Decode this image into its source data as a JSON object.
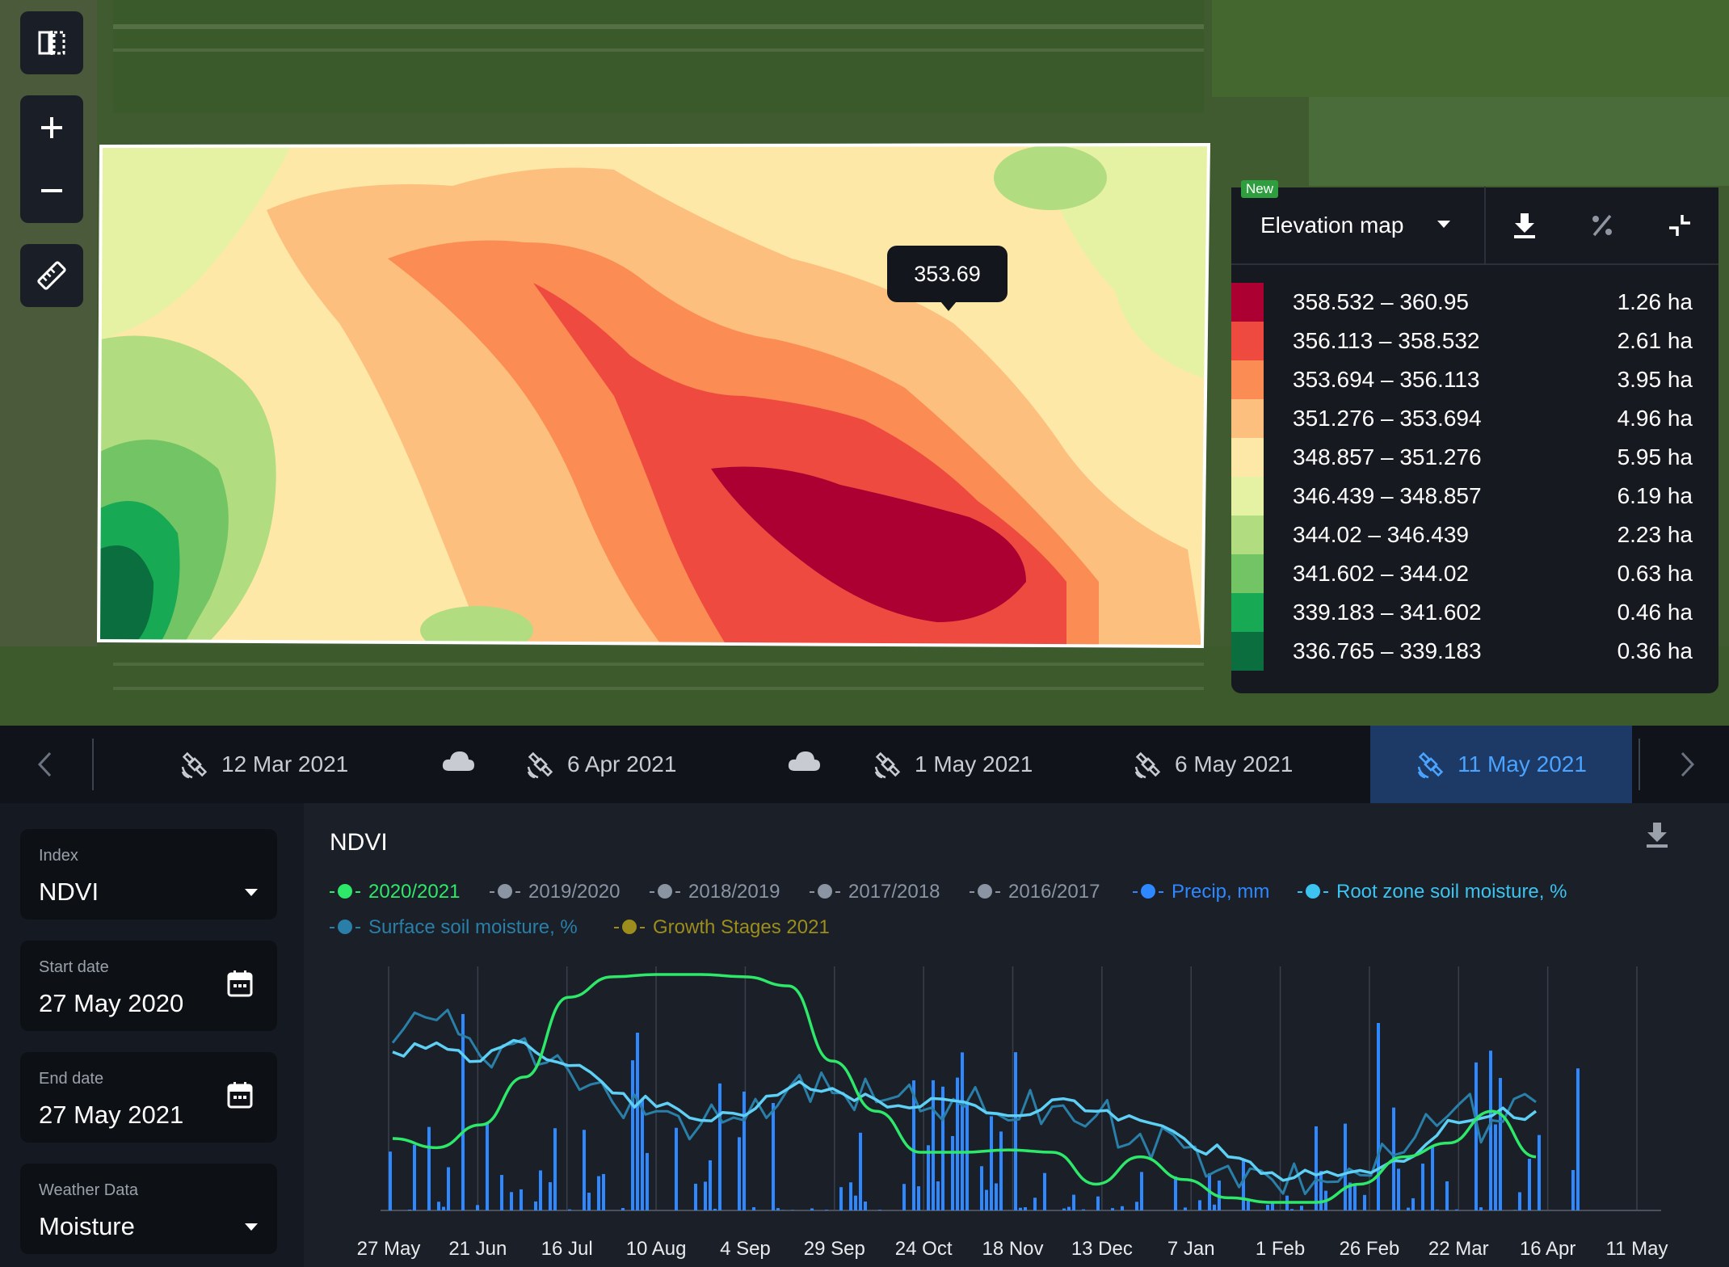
{
  "map": {
    "tooltip_value": "353.69",
    "tools": [
      "split-view",
      "zoom-in",
      "zoom-out",
      "ruler"
    ]
  },
  "legend": {
    "badge": "New",
    "map_type": "Elevation map",
    "colors": [
      "#ac0033",
      "#ee4a3f",
      "#fb8c53",
      "#fdbf7e",
      "#fee8a8",
      "#e5f2a4",
      "#b1dc80",
      "#73c464",
      "#18a955",
      "#0a6e3e"
    ],
    "rows": [
      {
        "range": "358.532 – 360.95",
        "area": "1.26 ha"
      },
      {
        "range": "356.113 – 358.532",
        "area": "2.61 ha"
      },
      {
        "range": "353.694 – 356.113",
        "area": "3.95 ha"
      },
      {
        "range": "351.276 – 353.694",
        "area": "4.96 ha"
      },
      {
        "range": "348.857 – 351.276",
        "area": "5.95 ha"
      },
      {
        "range": "346.439 – 348.857",
        "area": "6.19 ha"
      },
      {
        "range": "344.02 – 346.439",
        "area": "2.23 ha"
      },
      {
        "range": "341.602 – 344.02",
        "area": "0.63 ha"
      },
      {
        "range": "339.183 – 341.602",
        "area": "0.46 ha"
      },
      {
        "range": "336.765 – 339.183",
        "area": "0.36 ha"
      }
    ]
  },
  "timeline": {
    "items": [
      {
        "label": "12 Mar 2021",
        "type": "satellite"
      },
      {
        "label": "",
        "type": "cloud"
      },
      {
        "label": "6 Apr 2021",
        "type": "satellite"
      },
      {
        "label": "",
        "type": "cloud"
      },
      {
        "label": "1 May 2021",
        "type": "satellite"
      },
      {
        "label": "6 May 2021",
        "type": "satellite"
      },
      {
        "label": "11 May 2021",
        "type": "satellite",
        "active": true
      }
    ]
  },
  "sidebar": {
    "index": {
      "label": "Index",
      "value": "NDVI"
    },
    "start_date": {
      "label": "Start date",
      "value": "27 May 2020"
    },
    "end_date": {
      "label": "End date",
      "value": "27 May 2021"
    },
    "weather": {
      "label": "Weather Data",
      "value": "Moisture"
    }
  },
  "chart_data": {
    "type": "line",
    "title": "NDVI",
    "series": [
      {
        "name": "2020/2021",
        "color": "#2ee86a",
        "active": true
      },
      {
        "name": "2019/2020",
        "color": "#8a94a3"
      },
      {
        "name": "2018/2019",
        "color": "#8a94a3"
      },
      {
        "name": "2017/2018",
        "color": "#8a94a3"
      },
      {
        "name": "2016/2017",
        "color": "#8a94a3"
      },
      {
        "name": "Precip, mm",
        "color": "#2e88ff"
      },
      {
        "name": "Root zone soil moisture, %",
        "color": "#3cc3f0"
      },
      {
        "name": "Surface soil moisture, %",
        "color": "#2a7fa8"
      },
      {
        "name": "Growth Stages 2021",
        "color": "#9c8d1c"
      }
    ],
    "x_ticks": [
      "27 May",
      "21 Jun",
      "16 Jul",
      "10 Aug",
      "4 Sep",
      "29 Sep",
      "24 Oct",
      "18 Nov",
      "13 Dec",
      "7 Jan",
      "1 Feb",
      "26 Feb",
      "22 Mar",
      "16 Apr",
      "11 May"
    ],
    "ndvi": [
      0.28,
      0.24,
      0.34,
      0.55,
      0.9,
      0.99,
      1.0,
      1.0,
      0.99,
      0.95,
      0.62,
      0.4,
      0.22,
      0.22,
      0.23,
      0.22,
      0.08,
      0.2,
      0.1,
      0.02,
      0.0,
      0.0,
      0.08,
      0.2,
      0.26,
      0.4,
      0.2
    ],
    "root_moisture": [
      0.66,
      0.7,
      0.62,
      0.7,
      0.6,
      0.48,
      0.42,
      0.36,
      0.38,
      0.5,
      0.5,
      0.45,
      0.42,
      0.44,
      0.38,
      0.45,
      0.4,
      0.36,
      0.28,
      0.2,
      0.13,
      0.12,
      0.14,
      0.18,
      0.36,
      0.38,
      0.4
    ],
    "surface_moisture": [
      0.7,
      0.8,
      0.64,
      0.72,
      0.58,
      0.44,
      0.4,
      0.34,
      0.36,
      0.5,
      0.48,
      0.44,
      0.4,
      0.42,
      0.36,
      0.42,
      0.38,
      0.3,
      0.24,
      0.16,
      0.1,
      0.1,
      0.12,
      0.22,
      0.38,
      0.36,
      0.44
    ]
  }
}
